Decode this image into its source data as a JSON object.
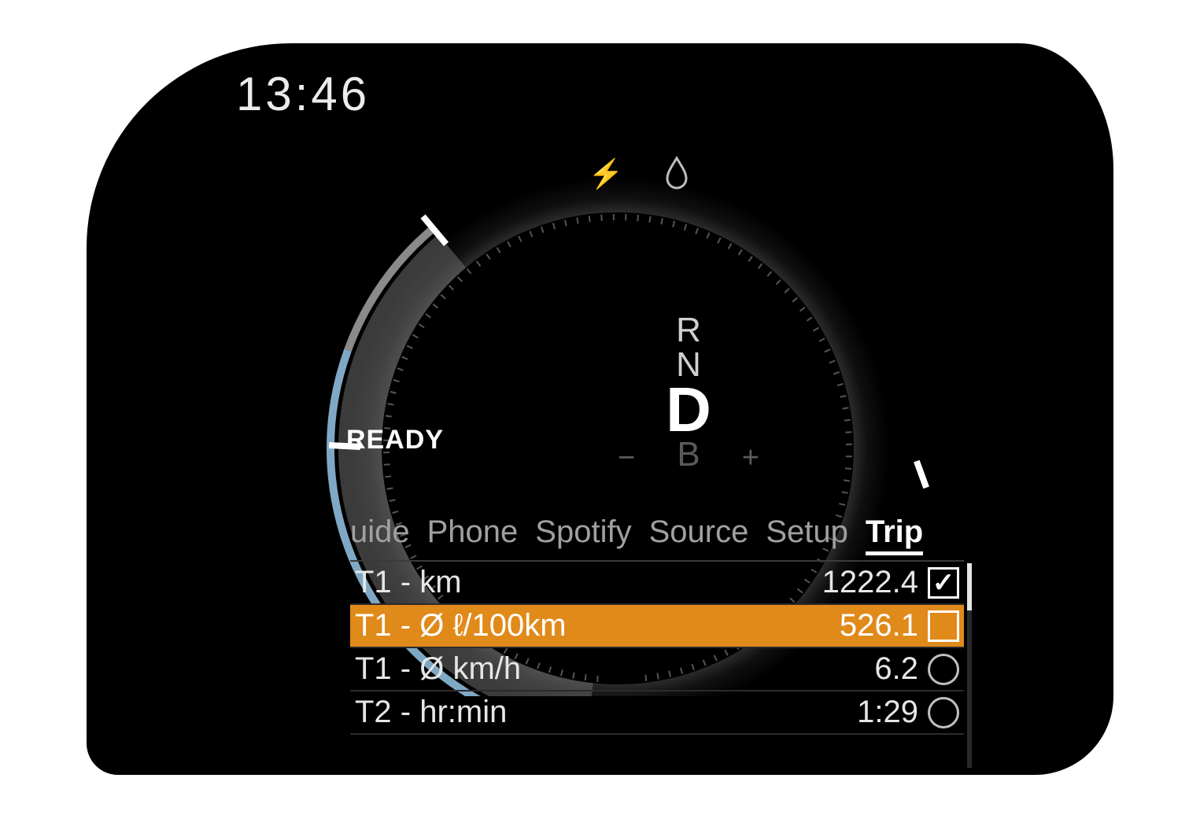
{
  "colors": {
    "background": "#000000",
    "page": "#ffffff",
    "text_primary": "#ffffff",
    "text_secondary": "#a0a0a0",
    "text_dim": "#5a5a5a",
    "arc_blue": "#7fa8c4",
    "arc_grey": "#6c6c6c",
    "ring_outer": "#2e2e2e",
    "ring_inner": "#161616",
    "highlight": "#e08a1a",
    "divider": "#3a3a3a"
  },
  "clock": "13:46",
  "status_text": "READY",
  "icons": {
    "lightning": "⚡",
    "drop": "◌"
  },
  "gears": {
    "r": "R",
    "n": "N",
    "d": "D",
    "b": "B",
    "minus": "−",
    "plus": "+",
    "selected": "D"
  },
  "gauge": {
    "outer_radius": 360,
    "ring_width": 70,
    "tick_radius": 290,
    "tick_count": 110,
    "arc_start_deg": 180,
    "arc_blue_end_deg": 290,
    "arc_grey_end_deg": 320,
    "needle_angle_deg": 320
  },
  "menu": {
    "tabs": [
      {
        "label": "uide",
        "active": false
      },
      {
        "label": "Phone",
        "active": false
      },
      {
        "label": "Spotify",
        "active": false
      },
      {
        "label": "Source",
        "active": false
      },
      {
        "label": "Setup",
        "active": false
      },
      {
        "label": "Trip",
        "active": true
      }
    ],
    "rows": [
      {
        "label": "T1 - km",
        "value": "1222.4",
        "indicator": "checkbox-checked",
        "highlight": false
      },
      {
        "label": "T1 - Ø ℓ/100km",
        "value": "526.1",
        "indicator": "checkbox-square",
        "highlight": true
      },
      {
        "label": "T1 - Ø km/h",
        "value": "6.2",
        "indicator": "circle",
        "highlight": false
      },
      {
        "label": "T2 - hr:min",
        "value": "1:29",
        "indicator": "circle",
        "highlight": false
      }
    ]
  }
}
